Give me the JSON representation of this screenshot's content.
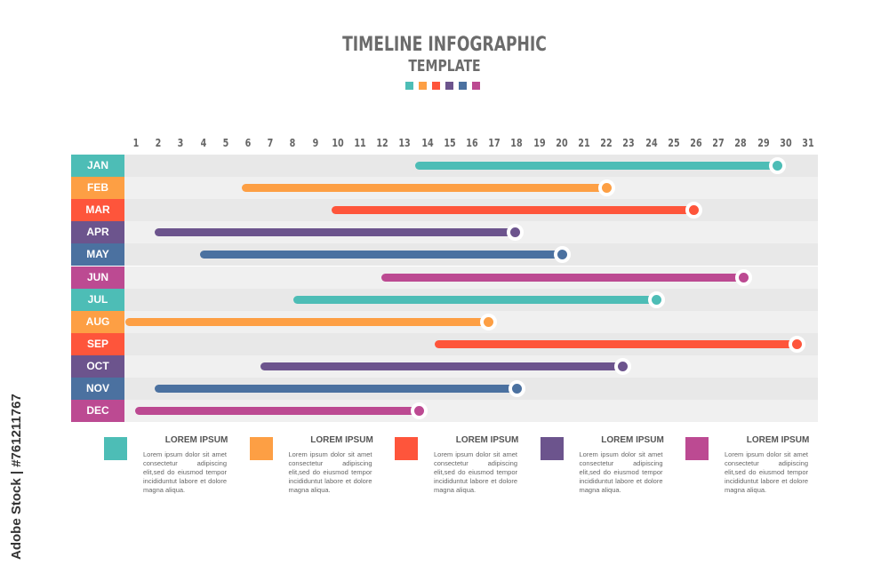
{
  "title": "TIMELINE INFOGRAPHIC",
  "subtitle": "TEMPLATE",
  "colors": [
    "#4dbdb6",
    "#fd9f44",
    "#fe553b",
    "#6c548d",
    "#4b71a0",
    "#bc4a92"
  ],
  "chart_data": {
    "type": "gantt",
    "x_ticks": [
      1,
      2,
      3,
      4,
      5,
      6,
      7,
      8,
      9,
      10,
      11,
      12,
      13,
      14,
      15,
      16,
      17,
      18,
      19,
      20,
      21,
      22,
      23,
      24,
      25,
      26,
      27,
      28,
      29,
      30,
      31
    ],
    "xlim": [
      1,
      31
    ],
    "rows": [
      {
        "label": "JAN",
        "start": 13.6,
        "end": 29.6,
        "color": "#4dbdb6"
      },
      {
        "label": "FEB",
        "start": 5.9,
        "end": 22,
        "color": "#fd9f44"
      },
      {
        "label": "MAR",
        "start": 9.9,
        "end": 25.9,
        "color": "#fe553b"
      },
      {
        "label": "APR",
        "start": 2,
        "end": 17.9,
        "color": "#6c548d"
      },
      {
        "label": "MAY",
        "start": 4,
        "end": 20,
        "color": "#4b71a0"
      },
      {
        "label": "JUN",
        "start": 12.1,
        "end": 28.1,
        "color": "#bc4a92"
      },
      {
        "label": "JUL",
        "start": 8.2,
        "end": 24.2,
        "color": "#4dbdb6"
      },
      {
        "label": "AUG",
        "start": 0.7,
        "end": 16.7,
        "color": "#fd9f44"
      },
      {
        "label": "SEP",
        "start": 14.5,
        "end": 30.5,
        "color": "#fe553b"
      },
      {
        "label": "OCT",
        "start": 6.7,
        "end": 22.7,
        "color": "#6c548d"
      },
      {
        "label": "NOV",
        "start": 2,
        "end": 18,
        "color": "#4b71a0"
      },
      {
        "label": "DEC",
        "start": 1.1,
        "end": 13.6,
        "color": "#bc4a92"
      }
    ]
  },
  "legend": [
    {
      "title": "LOREM IPSUM",
      "text": "Lorem ipsum dolor sit amet consectetur adipiscing elit,sed do eiusmod tempor incididuntut labore et dolore magna aliqua.",
      "color": "#4dbdb6"
    },
    {
      "title": "LOREM IPSUM",
      "text": "Lorem ipsum dolor sit amet consectetur adipiscing elit,sed do eiusmod tempor incididuntut labore et dolore magna aliqua.",
      "color": "#fd9f44"
    },
    {
      "title": "LOREM IPSUM",
      "text": "Lorem ipsum dolor sit amet consectetur adipiscing elit,sed do eiusmod tempor incididuntut labore et dolore magna aliqua.",
      "color": "#fe553b"
    },
    {
      "title": "LOREM IPSUM",
      "text": "Lorem ipsum dolor sit amet consectetur adipiscing elit,sed do eiusmod tempor incididuntut labore et dolore magna aliqua.",
      "color": "#6c548d"
    },
    {
      "title": "LOREM IPSUM",
      "text": "Lorem ipsum dolor sit amet consectetur adipiscing elit,sed do eiusmod tempor incididuntut labore et dolore magna aliqua.",
      "color": "#bc4a92"
    }
  ],
  "watermark": "Adobe Stock | #761211767"
}
